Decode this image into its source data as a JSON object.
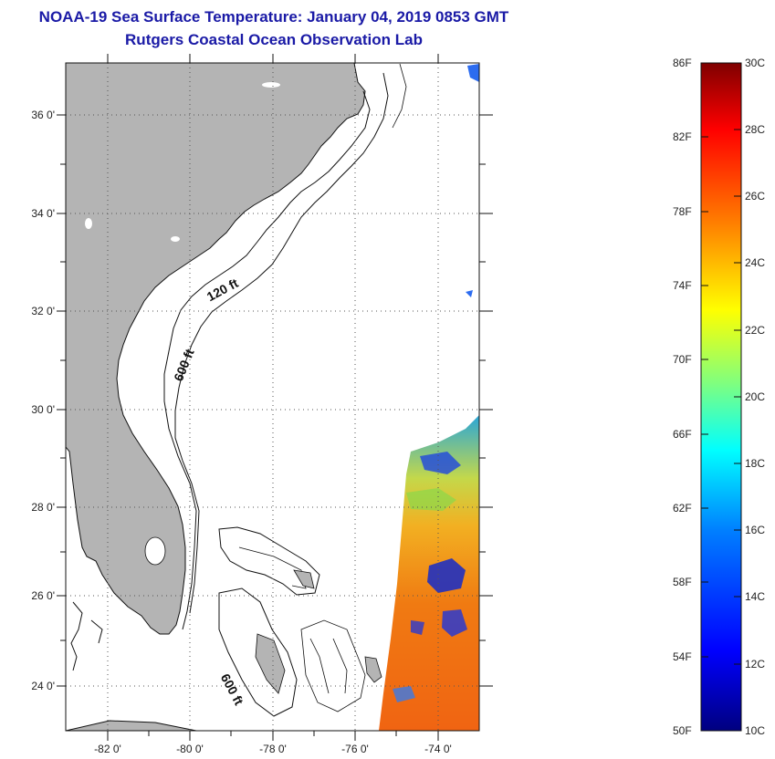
{
  "title": {
    "line1": "NOAA-19 Sea Surface Temperature:  January 04, 2019 0853 GMT",
    "line2": "Rutgers Coastal Ocean Observation Lab"
  },
  "map": {
    "lat_labels": [
      "36 0'",
      "34 0'",
      "32 0'",
      "30 0'",
      "28 0'",
      "26 0'",
      "24 0'"
    ],
    "lat_values": [
      36,
      34,
      32,
      30,
      28,
      26,
      24
    ],
    "lon_labels": [
      "-82 0'",
      "-80 0'",
      "-78 0'",
      "-76 0'",
      "-74 0'"
    ],
    "lon_values": [
      -82,
      -80,
      -78,
      -76,
      -74
    ],
    "lat_range": [
      23,
      37.1
    ],
    "lon_range": [
      -83,
      -73
    ],
    "contour_labels": [
      "120 ft",
      "600 ft",
      "600 ft"
    ],
    "land_color": "#b4b4b4",
    "gridlines": "dotted"
  },
  "colorbar": {
    "fahrenheit": [
      "86F",
      "82F",
      "78F",
      "74F",
      "70F",
      "66F",
      "62F",
      "58F",
      "54F",
      "50F"
    ],
    "celsius": [
      "30C",
      "28C",
      "26C",
      "24C",
      "22C",
      "20C",
      "18C",
      "16C",
      "14C",
      "12C",
      "10C"
    ],
    "range_c": [
      10,
      30
    ],
    "colors": [
      "#00007f",
      "#0000ff",
      "#007fff",
      "#00ffff",
      "#7fff7f",
      "#ffff00",
      "#ff7f00",
      "#ff0000",
      "#7f0000"
    ]
  }
}
